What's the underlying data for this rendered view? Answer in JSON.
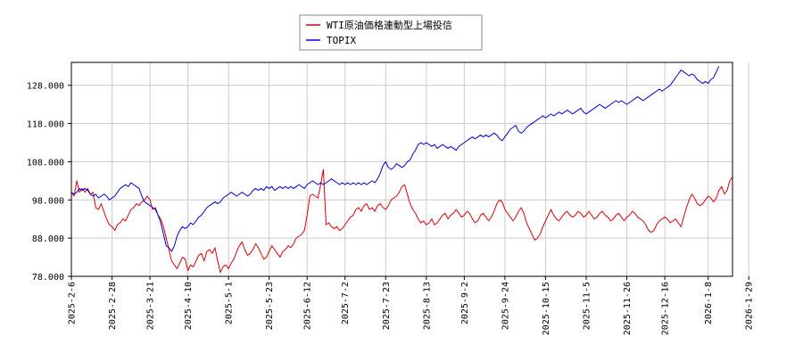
{
  "chart_data": {
    "type": "line",
    "title": "",
    "xlabel": "",
    "ylabel": "",
    "ylim": [
      78,
      134
    ],
    "grid": true,
    "legend_position": "top-center",
    "y_ticks": [
      "78.000",
      "88.000",
      "98.000",
      "108.000",
      "118.000",
      "128.000"
    ],
    "y_tick_values": [
      78,
      88,
      98,
      108,
      118,
      128
    ],
    "x_ticks": [
      "2025-2-6",
      "2025-2-28",
      "2025-3-21",
      "2025-4-10",
      "2025-5-1",
      "2025-5-23",
      "2025-6-12",
      "2025-7-2",
      "2025-7-23",
      "2025-8-13",
      "2025-9-2",
      "2025-9-24",
      "2025-10-15",
      "2025-11-5",
      "2025-11-26",
      "2025-12-16",
      "2026-1-8",
      "2026-1-29"
    ],
    "x_tick_index": [
      0,
      15,
      29,
      43,
      58,
      73,
      87,
      101,
      116,
      131,
      145,
      160,
      175,
      190,
      205,
      219,
      235,
      250
    ],
    "series": [
      {
        "name": "WTI原油価格連動型上場投信",
        "color": "#dd0000",
        "values": [
          100.0,
          99.0,
          103.0,
          100.0,
          101.0,
          100.0,
          101.0,
          99.5,
          100.0,
          96.0,
          95.5,
          97.0,
          95.0,
          93.0,
          91.5,
          91.0,
          90.0,
          91.5,
          92.0,
          93.0,
          92.5,
          94.0,
          95.5,
          96.0,
          97.0,
          96.5,
          97.5,
          98.0,
          99.0,
          98.0,
          95.5,
          96.0,
          94.0,
          93.0,
          91.0,
          88.0,
          85.0,
          82.0,
          81.0,
          80.0,
          81.5,
          83.0,
          82.5,
          79.5,
          81.0,
          80.5,
          82.0,
          83.5,
          84.0,
          82.0,
          84.5,
          85.0,
          84.0,
          85.5,
          82.0,
          79.0,
          80.5,
          81.0,
          80.0,
          81.5,
          82.5,
          84.5,
          86.0,
          87.0,
          85.0,
          83.5,
          84.0,
          85.0,
          86.5,
          85.5,
          84.0,
          82.5,
          83.0,
          84.5,
          86.0,
          85.0,
          84.0,
          83.0,
          84.5,
          85.0,
          86.0,
          85.5,
          86.5,
          88.0,
          88.5,
          89.0,
          90.0,
          94.0,
          99.0,
          99.5,
          99.0,
          98.5,
          102.0,
          106.0,
          91.5,
          92.0,
          91.0,
          90.5,
          91.0,
          90.0,
          90.5,
          91.5,
          92.5,
          93.5,
          94.0,
          95.5,
          96.0,
          95.0,
          96.5,
          97.0,
          95.5,
          96.0,
          95.0,
          96.5,
          97.0,
          96.0,
          95.5,
          96.5,
          98.0,
          98.5,
          99.0,
          100.0,
          101.5,
          102.0,
          99.5,
          97.0,
          95.5,
          94.5,
          93.0,
          92.0,
          92.5,
          91.5,
          92.0,
          93.0,
          91.5,
          92.0,
          93.0,
          94.0,
          94.5,
          93.0,
          94.0,
          94.5,
          95.5,
          94.5,
          93.5,
          94.0,
          95.0,
          94.5,
          93.0,
          92.0,
          92.5,
          94.0,
          94.5,
          93.5,
          92.5,
          93.5,
          95.0,
          97.0,
          98.0,
          97.5,
          95.5,
          94.5,
          93.5,
          92.5,
          93.5,
          95.0,
          96.0,
          94.5,
          92.0,
          90.5,
          89.0,
          87.5,
          88.0,
          89.0,
          91.0,
          92.5,
          94.0,
          95.5,
          94.0,
          93.0,
          92.5,
          93.5,
          94.5,
          95.0,
          94.0,
          93.5,
          94.0,
          95.0,
          94.5,
          93.5,
          94.0,
          95.0,
          94.0,
          93.0,
          93.5,
          94.5,
          95.0,
          94.0,
          93.5,
          92.5,
          93.0,
          94.0,
          94.5,
          93.5,
          92.5,
          93.5,
          94.0,
          95.0,
          94.5,
          93.5,
          93.0,
          92.5,
          91.5,
          90.0,
          89.5,
          90.0,
          91.5,
          92.5,
          93.0,
          93.5,
          93.0,
          92.0,
          92.5,
          93.0,
          92.0,
          91.0,
          93.5,
          96.0,
          98.0,
          99.5,
          98.5,
          97.0,
          96.5,
          97.0,
          98.0,
          99.0,
          98.5,
          97.5,
          98.5,
          100.5,
          101.5,
          99.5,
          100.5,
          103.0,
          104.0
        ]
      },
      {
        "name": "TOPIX",
        "color": "#0000dd",
        "values": [
          100.0,
          99.5,
          100.0,
          101.0,
          100.5,
          101.0,
          100.5,
          99.5,
          99.0,
          99.5,
          98.5,
          99.0,
          99.5,
          99.0,
          98.0,
          98.5,
          99.0,
          100.0,
          101.0,
          101.5,
          102.0,
          101.5,
          102.5,
          102.0,
          101.5,
          101.0,
          99.0,
          97.5,
          97.0,
          96.5,
          96.0,
          95.5,
          94.0,
          92.0,
          89.0,
          86.0,
          85.5,
          84.5,
          86.0,
          88.5,
          90.0,
          91.0,
          90.5,
          91.0,
          92.0,
          91.5,
          92.5,
          93.5,
          94.0,
          95.0,
          96.0,
          96.5,
          97.0,
          97.5,
          97.0,
          97.5,
          98.5,
          99.0,
          99.5,
          100.0,
          99.5,
          99.0,
          99.5,
          100.0,
          99.5,
          99.0,
          99.5,
          100.5,
          101.0,
          100.5,
          101.0,
          100.5,
          101.5,
          101.0,
          101.5,
          100.5,
          101.0,
          101.5,
          101.0,
          101.5,
          101.0,
          101.5,
          101.0,
          101.5,
          102.0,
          101.5,
          101.0,
          102.0,
          102.5,
          103.0,
          102.5,
          102.0,
          102.5,
          102.0,
          102.5,
          103.0,
          103.5,
          103.0,
          102.5,
          102.0,
          102.5,
          102.0,
          102.5,
          102.0,
          102.5,
          102.0,
          102.5,
          102.0,
          102.5,
          102.0,
          102.5,
          103.0,
          102.5,
          103.5,
          105.0,
          107.0,
          108.0,
          106.5,
          106.0,
          106.5,
          107.5,
          107.0,
          106.5,
          107.0,
          108.0,
          108.5,
          110.0,
          111.0,
          112.5,
          113.0,
          112.5,
          113.0,
          112.5,
          112.0,
          112.5,
          111.5,
          112.0,
          112.5,
          112.0,
          111.5,
          112.0,
          111.5,
          111.0,
          112.0,
          112.5,
          113.0,
          113.5,
          114.0,
          114.5,
          114.0,
          114.5,
          115.0,
          114.5,
          115.0,
          114.5,
          115.0,
          115.5,
          115.0,
          114.0,
          113.5,
          114.5,
          115.5,
          116.5,
          117.0,
          117.5,
          116.0,
          115.5,
          116.0,
          117.0,
          117.5,
          118.0,
          118.5,
          119.0,
          119.5,
          120.0,
          119.5,
          120.0,
          120.5,
          120.0,
          120.5,
          121.0,
          120.5,
          121.0,
          121.5,
          121.0,
          120.5,
          121.0,
          121.5,
          122.0,
          121.0,
          120.5,
          121.0,
          121.5,
          122.0,
          122.5,
          123.0,
          122.5,
          122.0,
          122.5,
          123.0,
          123.5,
          124.0,
          123.5,
          124.0,
          123.5,
          123.0,
          123.5,
          124.0,
          124.5,
          125.0,
          124.5,
          124.0,
          124.5,
          125.0,
          125.5,
          126.0,
          126.5,
          127.0,
          126.5,
          127.0,
          127.5,
          128.0,
          129.0,
          130.0,
          131.0,
          132.0,
          131.5,
          131.0,
          130.5,
          131.0,
          130.5,
          129.5,
          129.0,
          128.5,
          129.0,
          128.5,
          129.5,
          130.0,
          131.5,
          133.0
        ]
      }
    ]
  }
}
